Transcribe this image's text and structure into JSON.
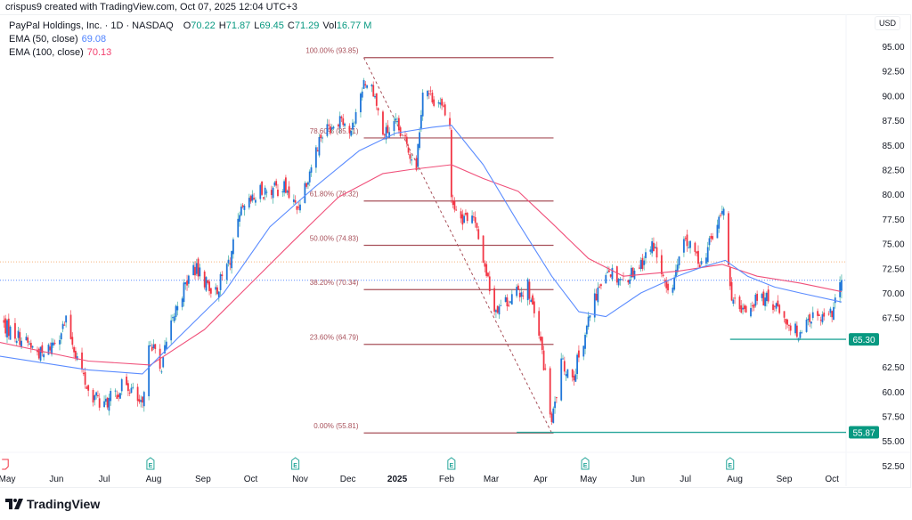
{
  "header": {
    "credit": "crispus9 created with TradingView.com, Oct 07, 2025 12:04 UTC+3",
    "symbol": "PayPal Holdings, Inc. · 1D · NASDAQ",
    "ohlc": {
      "o_label": "O",
      "o": "70.22",
      "h_label": "H",
      "h": "71.87",
      "l_label": "L",
      "l": "69.45",
      "c_label": "C",
      "c": "71.29",
      "vol_label": "Vol",
      "vol": "16.77 M"
    },
    "ema50": {
      "label": "EMA (50, close)",
      "value": "69.08"
    },
    "ema100": {
      "label": "EMA (100, close)",
      "value": "70.13"
    }
  },
  "footer": {
    "brand": "TradingView"
  },
  "colors": {
    "up_body": "#2176d9",
    "up_wick": "#26a69a",
    "down": "#f23645",
    "ema50": "#5b8cff",
    "ema100": "#f0507a",
    "fib": "#a8505a",
    "support": "#26a69a",
    "label_bg": "#089981",
    "earnings": "#26a69a"
  },
  "chart_data": {
    "type": "candlestick",
    "currency": "USD",
    "interval": "1D",
    "ylim": [
      52.5,
      95.0
    ],
    "y_ticks": [
      "95.00",
      "92.50",
      "90.00",
      "87.50",
      "85.00",
      "82.50",
      "80.00",
      "77.50",
      "75.00",
      "72.50",
      "70.00",
      "67.50",
      "62.50",
      "60.00",
      "57.50",
      "55.00",
      "52.50"
    ],
    "x_ticks": [
      {
        "date": "2024-05-01",
        "label": "May"
      },
      {
        "date": "2024-06-01",
        "label": "Jun"
      },
      {
        "date": "2024-07-01",
        "label": "Jul"
      },
      {
        "date": "2024-08-01",
        "label": "Aug"
      },
      {
        "date": "2024-09-01",
        "label": "Sep"
      },
      {
        "date": "2024-10-01",
        "label": "Oct"
      },
      {
        "date": "2024-11-01",
        "label": "Nov"
      },
      {
        "date": "2024-12-01",
        "label": "Dec"
      },
      {
        "date": "2025-01-01",
        "label": "2025",
        "bold": true
      },
      {
        "date": "2025-02-01",
        "label": "Feb"
      },
      {
        "date": "2025-03-01",
        "label": "Mar"
      },
      {
        "date": "2025-04-01",
        "label": "Apr"
      },
      {
        "date": "2025-05-01",
        "label": "May"
      },
      {
        "date": "2025-06-01",
        "label": "Jun"
      },
      {
        "date": "2025-07-01",
        "label": "Jul"
      },
      {
        "date": "2025-08-01",
        "label": "Aug"
      },
      {
        "date": "2025-09-01",
        "label": "Sep"
      },
      {
        "date": "2025-10-01",
        "label": "Oct"
      }
    ],
    "close_path": [
      [
        "2024-04-29",
        66.7
      ],
      [
        "2024-05-24",
        63.6
      ],
      [
        "2024-06-07",
        67.0
      ],
      [
        "2024-06-21",
        60.0
      ],
      [
        "2024-07-01",
        58.6
      ],
      [
        "2024-07-15",
        61.0
      ],
      [
        "2024-07-25",
        58.2
      ],
      [
        "2024-07-30",
        65.4
      ],
      [
        "2024-08-05",
        62.2
      ],
      [
        "2024-08-16",
        69.0
      ],
      [
        "2024-08-26",
        72.6
      ],
      [
        "2024-09-09",
        70.0
      ],
      [
        "2024-09-18",
        73.5
      ],
      [
        "2024-09-25",
        78.0
      ],
      [
        "2024-10-07",
        80.3
      ],
      [
        "2024-10-22",
        80.7
      ],
      [
        "2024-10-30",
        78.5
      ],
      [
        "2024-11-14",
        86.0
      ],
      [
        "2024-11-27",
        88.0
      ],
      [
        "2024-12-03",
        86.0
      ],
      [
        "2024-12-11",
        91.6
      ],
      [
        "2024-12-17",
        90.7
      ],
      [
        "2024-12-23",
        86.0
      ],
      [
        "2024-12-31",
        87.0
      ],
      [
        "2025-01-13",
        83.0
      ],
      [
        "2025-01-17",
        90.7
      ],
      [
        "2025-01-27",
        89.3
      ],
      [
        "2025-02-03",
        87.0
      ],
      [
        "2025-02-04",
        79.4
      ],
      [
        "2025-02-11",
        77.6
      ],
      [
        "2025-02-17",
        78.0
      ],
      [
        "2025-02-24",
        73.5
      ],
      [
        "2025-03-03",
        68.5
      ],
      [
        "2025-03-14",
        69.5
      ],
      [
        "2025-03-24",
        70.8
      ],
      [
        "2025-03-28",
        67.6
      ],
      [
        "2025-04-02",
        64.0
      ],
      [
        "2025-04-08",
        56.8
      ],
      [
        "2025-04-14",
        62.7
      ],
      [
        "2025-04-22",
        61.8
      ],
      [
        "2025-05-01",
        67.2
      ],
      [
        "2025-05-12",
        72.6
      ],
      [
        "2025-05-23",
        71.3
      ],
      [
        "2025-06-03",
        73.0
      ],
      [
        "2025-06-11",
        74.9
      ],
      [
        "2025-06-20",
        69.5
      ],
      [
        "2025-07-01",
        75.3
      ],
      [
        "2025-07-11",
        73.0
      ],
      [
        "2025-07-25",
        78.5
      ],
      [
        "2025-07-29",
        70.4
      ],
      [
        "2025-08-04",
        67.6
      ],
      [
        "2025-08-15",
        69.5
      ],
      [
        "2025-08-26",
        69.0
      ],
      [
        "2025-09-09",
        65.9
      ],
      [
        "2025-09-17",
        67.6
      ],
      [
        "2025-09-29",
        67.2
      ],
      [
        "2025-10-07",
        71.29
      ]
    ],
    "last_bar": {
      "date": "2025-10-07",
      "open": 70.22,
      "high": 71.87,
      "low": 69.45,
      "close": 71.29,
      "volume": "16.77M"
    },
    "ema50_path": [
      [
        "2024-04-26",
        63.6
      ],
      [
        "2024-06-21",
        62.2
      ],
      [
        "2024-07-25",
        61.8
      ],
      [
        "2024-08-16",
        65.4
      ],
      [
        "2024-09-14",
        70.0
      ],
      [
        "2024-10-13",
        76.7
      ],
      [
        "2024-11-10",
        80.7
      ],
      [
        "2024-12-08",
        84.4
      ],
      [
        "2024-12-31",
        86.2
      ],
      [
        "2025-01-23",
        86.8
      ],
      [
        "2025-02-04",
        87.0
      ],
      [
        "2025-02-24",
        83.0
      ],
      [
        "2025-03-18",
        77.1
      ],
      [
        "2025-04-08",
        71.7
      ],
      [
        "2025-04-25",
        68.1
      ],
      [
        "2025-05-12",
        67.6
      ],
      [
        "2025-06-03",
        70.0
      ],
      [
        "2025-06-26",
        71.7
      ],
      [
        "2025-07-11",
        72.6
      ],
      [
        "2025-07-26",
        73.3
      ],
      [
        "2025-08-09",
        71.7
      ],
      [
        "2025-08-26",
        70.6
      ],
      [
        "2025-09-11",
        70.0
      ],
      [
        "2025-10-07",
        69.08
      ]
    ],
    "ema100_path": [
      [
        "2024-04-26",
        65.0
      ],
      [
        "2024-06-21",
        63.1
      ],
      [
        "2024-07-30",
        62.7
      ],
      [
        "2024-09-02",
        66.3
      ],
      [
        "2024-09-30",
        70.8
      ],
      [
        "2024-10-28",
        75.3
      ],
      [
        "2024-11-25",
        79.7
      ],
      [
        "2024-12-23",
        82.1
      ],
      [
        "2025-01-09",
        82.5
      ],
      [
        "2025-02-04",
        83.0
      ],
      [
        "2025-02-24",
        81.6
      ],
      [
        "2025-03-18",
        80.3
      ],
      [
        "2025-04-08",
        77.1
      ],
      [
        "2025-05-01",
        73.5
      ],
      [
        "2025-05-23",
        71.7
      ],
      [
        "2025-06-26",
        72.2
      ],
      [
        "2025-07-24",
        72.9
      ],
      [
        "2025-08-15",
        71.7
      ],
      [
        "2025-09-11",
        71.0
      ],
      [
        "2025-10-07",
        70.13
      ]
    ],
    "fib_retracement": {
      "from": {
        "date": "2024-12-11",
        "price": 93.85
      },
      "to": {
        "date": "2025-04-08",
        "price": 55.81
      },
      "levels": [
        {
          "label": "100.00% (93.85)",
          "price": 93.85
        },
        {
          "label": "78.60% (85.71)",
          "price": 85.71
        },
        {
          "label": "61.80% (79.32)",
          "price": 79.32
        },
        {
          "label": "50.00% (74.83)",
          "price": 74.83
        },
        {
          "label": "38.20% (70.34)",
          "price": 70.34
        },
        {
          "label": "23.60% (64.79)",
          "price": 64.79
        },
        {
          "label": "0.00% (55.81)",
          "price": 55.81
        }
      ]
    },
    "support_lines": [
      {
        "price": 65.3,
        "label": "65.30",
        "from_date": "2025-07-29"
      },
      {
        "price": 55.87,
        "label": "55.87",
        "from_date": "2025-03-17"
      }
    ],
    "current_price": 71.29,
    "reference_price": 73.15,
    "earnings_dates": [
      "2024-07-30",
      "2024-10-29",
      "2025-02-04",
      "2025-04-29",
      "2025-07-29"
    ],
    "earnings_label": "E",
    "dividend_dates": [
      "2024-04-30"
    ]
  }
}
